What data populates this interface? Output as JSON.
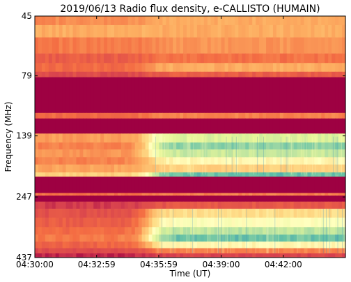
{
  "chart_data": {
    "type": "heatmap",
    "title": "2019/06/13  Radio flux density, e-CALLISTO (HUMAIN)",
    "xlabel": "Time (UT)",
    "ylabel": "Frequency (MHz)",
    "x_ticks": [
      "04:30:00",
      "04:32:59",
      "04:35:59",
      "04:39:00",
      "04:42:00"
    ],
    "x_tick_seconds": [
      0,
      179,
      359,
      540,
      720
    ],
    "xlim_seconds": [
      0,
      900
    ],
    "y_ticks": [
      "45",
      "79",
      "139",
      "247",
      "437"
    ],
    "y_tick_values": [
      45,
      79,
      139,
      247,
      437
    ],
    "ylim": [
      45,
      437
    ],
    "y_inverted": true,
    "y_scale": "log",
    "colormap": "Spectral",
    "colors": {
      "low": "#9e0142",
      "mid_low": "#f46d43",
      "mid": "#fee08b",
      "mid_high": "#e6f598",
      "high": "#3288bd"
    },
    "bands": [
      {
        "f_low": 45,
        "f_high": 49,
        "level_before": 0.32,
        "level_after": 0.4
      },
      {
        "f_low": 49,
        "f_high": 55,
        "level_before": 0.4,
        "level_after": 0.4
      },
      {
        "f_low": 55,
        "f_high": 64,
        "level_before": 0.28,
        "level_after": 0.34
      },
      {
        "f_low": 64,
        "f_high": 70,
        "level_before": 0.2,
        "level_after": 0.26
      },
      {
        "f_low": 70,
        "f_high": 76,
        "level_before": 0.24,
        "level_after": 0.4
      },
      {
        "f_low": 76,
        "f_high": 80,
        "level_before": 0.14,
        "level_after": 0.2
      },
      {
        "f_low": 80,
        "f_high": 112,
        "level_before": 0.0,
        "level_after": 0.0
      },
      {
        "f_low": 112,
        "f_high": 118,
        "level_before": 0.24,
        "level_after": 0.3
      },
      {
        "f_low": 118,
        "f_high": 136,
        "level_before": 0.0,
        "level_after": 0.0
      },
      {
        "f_low": 136,
        "f_high": 148,
        "level_before": 0.36,
        "level_after": 0.76
      },
      {
        "f_low": 148,
        "f_high": 158,
        "level_before": 0.3,
        "level_after": 0.88
      },
      {
        "f_low": 158,
        "f_high": 170,
        "level_before": 0.34,
        "level_after": 0.8
      },
      {
        "f_low": 170,
        "f_high": 182,
        "level_before": 0.3,
        "level_after": 0.62
      },
      {
        "f_low": 182,
        "f_high": 196,
        "level_before": 0.38,
        "level_after": 0.5
      },
      {
        "f_low": 196,
        "f_high": 204,
        "level_before": 0.5,
        "level_after": 0.92
      },
      {
        "f_low": 204,
        "f_high": 238,
        "level_before": 0.0,
        "level_after": 0.0
      },
      {
        "f_low": 238,
        "f_high": 244,
        "level_before": 0.26,
        "level_after": 0.3
      },
      {
        "f_low": 244,
        "f_high": 258,
        "level_before": 0.0,
        "level_after": 0.0
      },
      {
        "f_low": 258,
        "f_high": 276,
        "level_before": 0.1,
        "level_after": 0.18
      },
      {
        "f_low": 276,
        "f_high": 300,
        "level_before": 0.16,
        "level_after": 0.54
      },
      {
        "f_low": 300,
        "f_high": 328,
        "level_before": 0.2,
        "level_after": 0.66
      },
      {
        "f_low": 328,
        "f_high": 352,
        "level_before": 0.24,
        "level_after": 0.82
      },
      {
        "f_low": 352,
        "f_high": 376,
        "level_before": 0.28,
        "level_after": 0.92
      },
      {
        "f_low": 376,
        "f_high": 400,
        "level_before": 0.22,
        "level_after": 0.62
      },
      {
        "f_low": 400,
        "f_high": 420,
        "level_before": 0.14,
        "level_after": 0.3
      },
      {
        "f_low": 420,
        "f_high": 437,
        "level_before": 0.06,
        "level_after": 0.12
      }
    ],
    "onset_seconds": 330,
    "grid": false
  }
}
